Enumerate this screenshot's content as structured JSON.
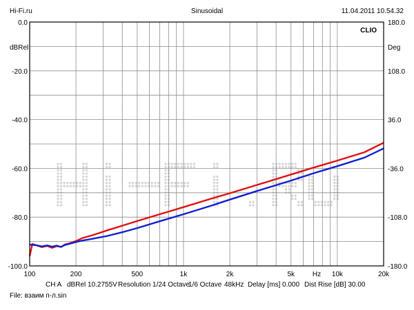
{
  "header": {
    "site": "Hi-Fi.ru",
    "mode": "Sinusoidal",
    "datetime": "11.04.2011 10.54.32"
  },
  "brand": "CLIO",
  "footer": {
    "ch": "CH A",
    "ref": "dBRel 10.2755V",
    "resolution": "Resolution 1/24 Octave",
    "smoothing": "1/6 Octave",
    "rate": "48kHz",
    "delay": "Delay [ms] 0.000",
    "distrise": "Dist Rise [dB] 30.00",
    "file": "File: взаим п-л.sin"
  },
  "watermark": "Hi-Fi.ru",
  "colors": {
    "grid": "#8c8c8c",
    "series_red": "#e01010",
    "series_blue": "#1020d0",
    "watermark": "#d6d6d6"
  },
  "chart_data": {
    "type": "line",
    "xscale": "log",
    "xlim": [
      100,
      20000
    ],
    "ylim": [
      -100,
      0
    ],
    "y2lim": [
      -180,
      180
    ],
    "ylabel": "dBRel",
    "y2label": "Deg",
    "xunit": "Hz",
    "grid": true,
    "x_ticks": [
      {
        "v": 100,
        "label": "100"
      },
      {
        "v": 200,
        "label": "200"
      },
      {
        "v": 500,
        "label": "500"
      },
      {
        "v": 1000,
        "label": "1k"
      },
      {
        "v": 2000,
        "label": "2k"
      },
      {
        "v": 5000,
        "label": "5k"
      },
      {
        "v": 10000,
        "label": "10k"
      },
      {
        "v": 20000,
        "label": "20k"
      }
    ],
    "y_ticks": [
      {
        "v": 0,
        "label": "0.0"
      },
      {
        "v": -20,
        "label": "-20.0"
      },
      {
        "v": -40,
        "label": "-40.0"
      },
      {
        "v": -60,
        "label": "-60.0"
      },
      {
        "v": -80,
        "label": "-80.0"
      },
      {
        "v": -100,
        "label": "-100.0"
      }
    ],
    "y2_ticks": [
      {
        "v": 180,
        "label": "180.0"
      },
      {
        "v": 108,
        "label": "108.0"
      },
      {
        "v": 36,
        "label": "36.0"
      },
      {
        "v": -36,
        "label": "-36.0"
      },
      {
        "v": -108,
        "label": "-108.0"
      },
      {
        "v": -180,
        "label": "-180.0"
      }
    ],
    "series": [
      {
        "color": "red",
        "points": [
          [
            100,
            -96
          ],
          [
            104,
            -91
          ],
          [
            110,
            -91.5
          ],
          [
            120,
            -92.3
          ],
          [
            130,
            -91.8
          ],
          [
            140,
            -92.6
          ],
          [
            150,
            -91.9
          ],
          [
            160,
            -92.2
          ],
          [
            170,
            -91.2
          ],
          [
            180,
            -90.8
          ],
          [
            200,
            -89.8
          ],
          [
            220,
            -88.6
          ],
          [
            250,
            -87.6
          ],
          [
            280,
            -86.6
          ],
          [
            320,
            -85.4
          ],
          [
            400,
            -83.5
          ],
          [
            500,
            -81.6
          ],
          [
            700,
            -78.8
          ],
          [
            1000,
            -75.9
          ],
          [
            1500,
            -72.5
          ],
          [
            2000,
            -70.2
          ],
          [
            3000,
            -66.8
          ],
          [
            5000,
            -62.5
          ],
          [
            7000,
            -59.7
          ],
          [
            10000,
            -56.8
          ],
          [
            15000,
            -53.4
          ],
          [
            20000,
            -49.5
          ]
        ]
      },
      {
        "color": "blue",
        "points": [
          [
            100,
            -91.3
          ],
          [
            110,
            -91.5
          ],
          [
            120,
            -92.0
          ],
          [
            130,
            -91.6
          ],
          [
            140,
            -92.1
          ],
          [
            150,
            -91.7
          ],
          [
            160,
            -92.2
          ],
          [
            170,
            -91.4
          ],
          [
            180,
            -91.0
          ],
          [
            200,
            -90.2
          ],
          [
            220,
            -89.6
          ],
          [
            250,
            -89.0
          ],
          [
            280,
            -88.4
          ],
          [
            320,
            -87.7
          ],
          [
            400,
            -86.2
          ],
          [
            500,
            -84.5
          ],
          [
            700,
            -81.7
          ],
          [
            1000,
            -78.8
          ],
          [
            1500,
            -75.4
          ],
          [
            2000,
            -72.8
          ],
          [
            3000,
            -69.3
          ],
          [
            5000,
            -65.0
          ],
          [
            7000,
            -62.0
          ],
          [
            10000,
            -59.1
          ],
          [
            15000,
            -55.6
          ],
          [
            20000,
            -51.8
          ]
        ]
      }
    ]
  }
}
